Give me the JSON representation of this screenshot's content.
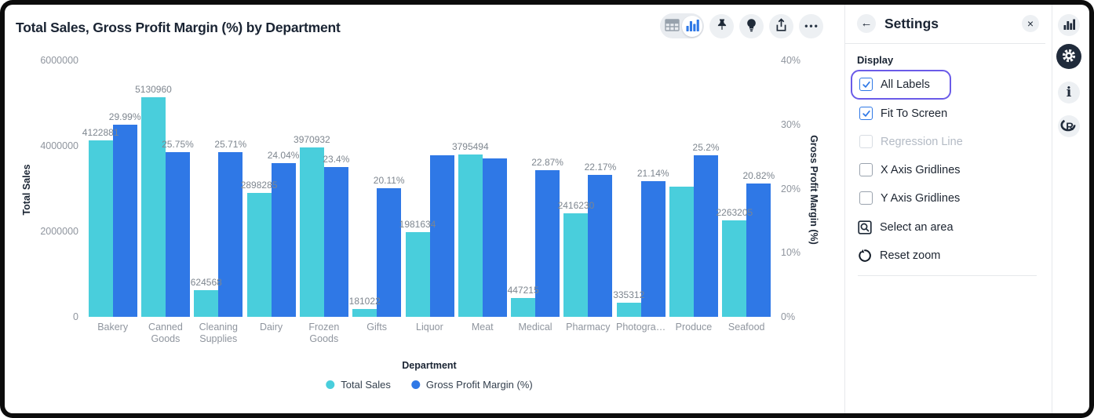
{
  "chart_data": {
    "type": "bar",
    "title": "Total Sales, Gross Profit Margin (%) by Department",
    "categories": [
      "Bakery",
      "Canned Goods",
      "Cleaning Supplies",
      "Dairy",
      "Frozen Goods",
      "Gifts",
      "Liquor",
      "Meat",
      "Medical",
      "Pharmacy",
      "Photogra…",
      "Produce",
      "Seafood"
    ],
    "series": [
      {
        "name": "Total Sales",
        "color": "#49cedc",
        "axis": "left",
        "values": [
          4122881,
          5130960,
          624568,
          2898285,
          3970932,
          181022,
          1981634,
          3795494,
          447215,
          2416230,
          335312,
          3046000,
          2263205
        ],
        "labels": [
          "4122881",
          "5130960",
          "624568",
          "2898285",
          "3970932",
          "181022",
          "1981634",
          "3795494",
          "447215",
          "2416230",
          "335312",
          "",
          "2263205"
        ]
      },
      {
        "name": "Gross Profit Margin (%)",
        "color": "#2f78e6",
        "axis": "right",
        "values": [
          29.99,
          25.75,
          25.71,
          24.04,
          23.4,
          20.11,
          25.2,
          24.7,
          22.87,
          22.17,
          21.14,
          25.2,
          20.82
        ],
        "labels": [
          "29.99%",
          "25.75%",
          "25.71%",
          "24.04%",
          "23.4%",
          "20.11%",
          "",
          "",
          "22.87%",
          "22.17%",
          "21.14%",
          "25.2%",
          "20.82%"
        ]
      }
    ],
    "left_axis": {
      "label": "Total Sales",
      "max": 6000000,
      "ticks": [
        "6000000",
        "4000000",
        "2000000",
        "0"
      ]
    },
    "right_axis": {
      "label": "Gross Profit Margin (%)",
      "max": 40,
      "ticks": [
        "40%",
        "30%",
        "20%",
        "10%",
        "0%"
      ]
    },
    "x_axis": {
      "label": "Department"
    },
    "legend_position": "bottom",
    "gridlines": false
  },
  "toolbar": {
    "view_toggle": [
      "table-view-icon",
      "chart-view-icon"
    ],
    "active_view": "chart",
    "more_label": "•••"
  },
  "settings_panel": {
    "back_icon": "←",
    "title": "Settings",
    "close_icon": "×",
    "section_label": "Display",
    "checkboxes": [
      {
        "label": "All Labels",
        "checked": true,
        "disabled": false,
        "focused": true
      },
      {
        "label": "Fit To Screen",
        "checked": true,
        "disabled": false,
        "focused": false
      },
      {
        "label": "Regression Line",
        "checked": false,
        "disabled": true,
        "focused": false
      },
      {
        "label": "X Axis Gridlines",
        "checked": false,
        "disabled": false,
        "focused": false
      },
      {
        "label": "Y Axis Gridlines",
        "checked": false,
        "disabled": false,
        "focused": false
      }
    ],
    "actions": [
      {
        "label": "Select an area",
        "icon": "area-select-icon"
      },
      {
        "label": "Reset zoom",
        "icon": "reset-zoom-icon"
      }
    ]
  },
  "right_rail": {
    "icons": [
      "chart-icon",
      "gear-icon",
      "info-icon",
      "r-logo-icon"
    ],
    "active": "gear-icon"
  },
  "colors": {
    "series_cyan": "#49cedc",
    "series_blue": "#2f78e6",
    "focus_ring": "#6a5be8",
    "checkbox_blue": "#2f78e6",
    "text_dark": "#1a2433",
    "text_gray": "#8f959e"
  }
}
